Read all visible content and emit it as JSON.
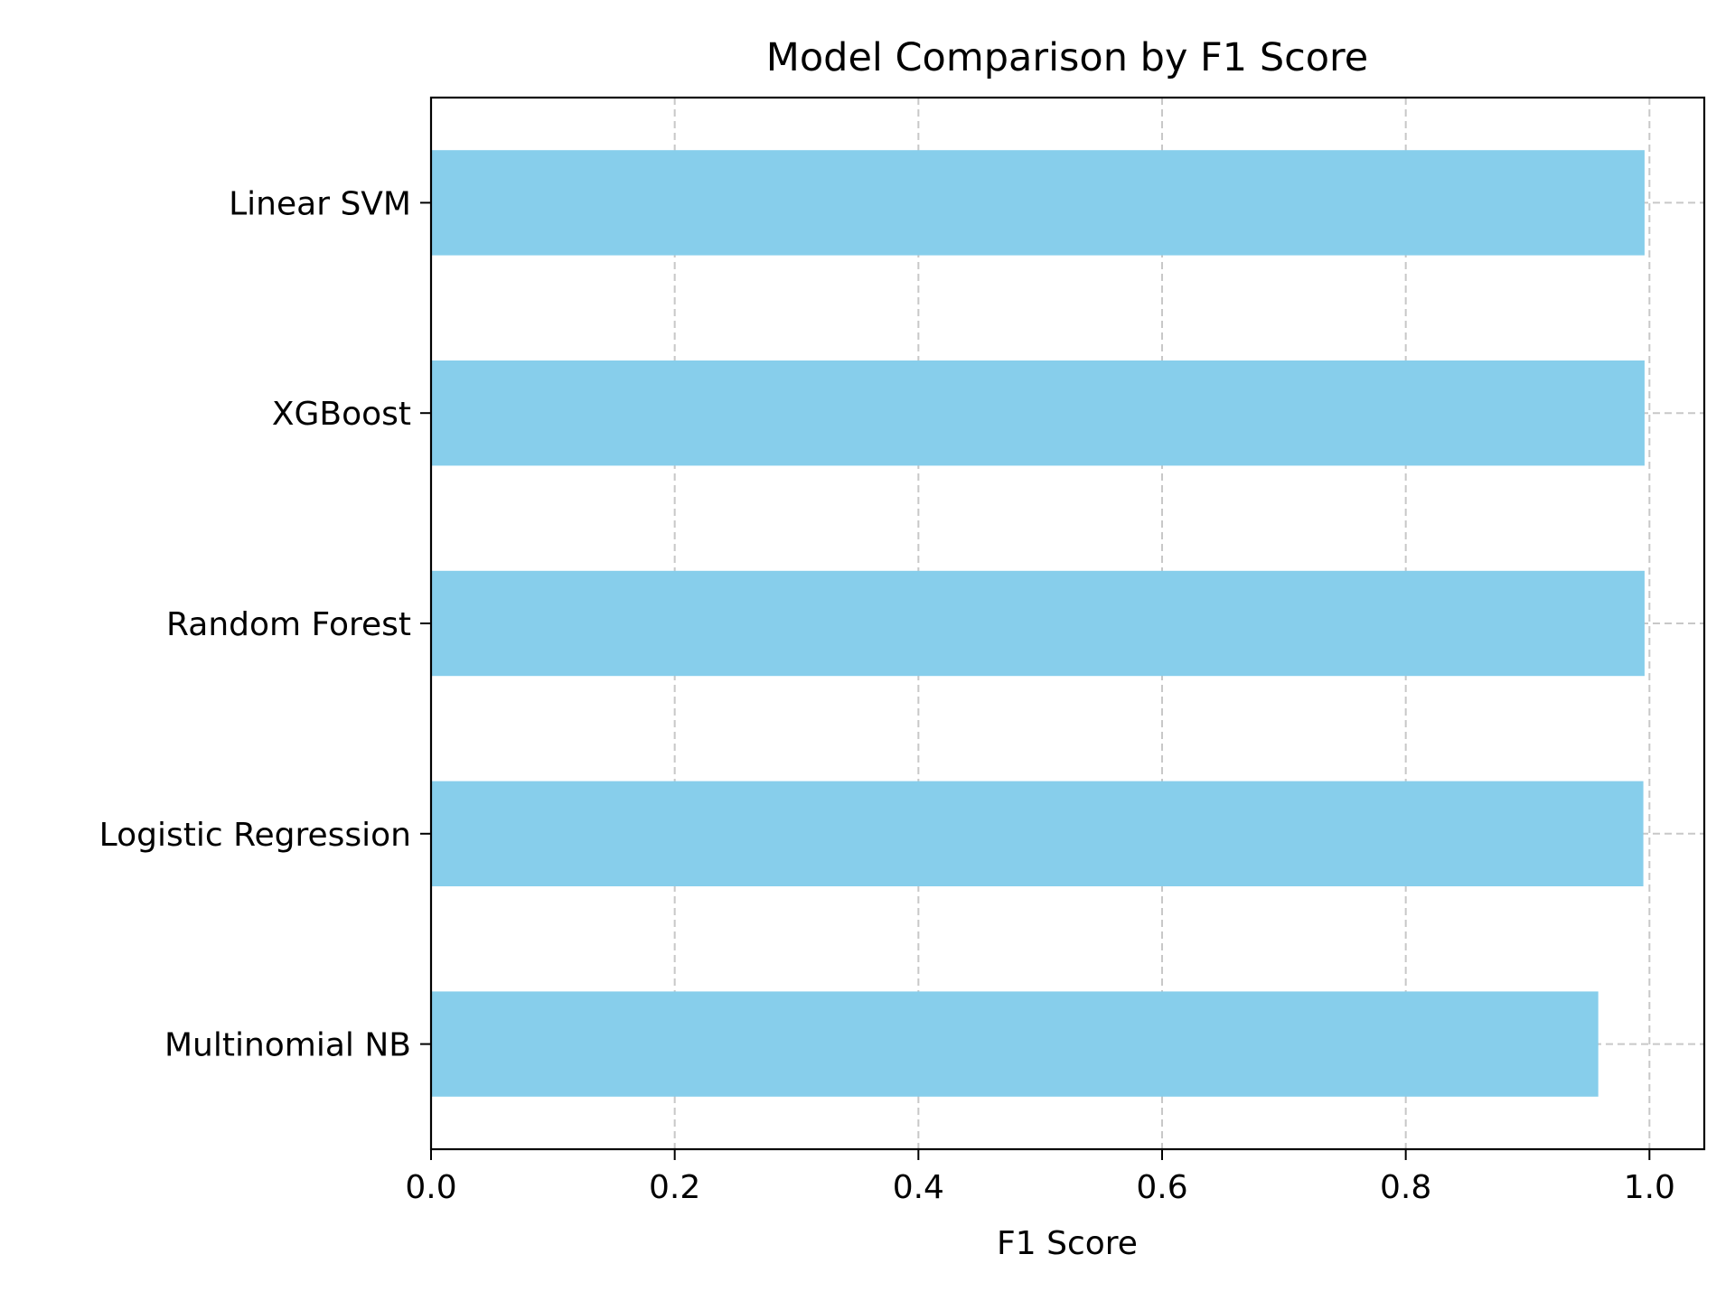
{
  "chart_data": {
    "type": "bar",
    "orientation": "horizontal",
    "title": "Model Comparison by F1 Score",
    "xlabel": "F1 Score",
    "ylabel": "",
    "xlim": [
      0,
      1.045
    ],
    "xticks": [
      0.0,
      0.2,
      0.4,
      0.6,
      0.8,
      1.0
    ],
    "xtick_labels": [
      "0.0",
      "0.2",
      "0.4",
      "0.6",
      "0.8",
      "1.0"
    ],
    "categories": [
      "Linear SVM",
      "XGBoost",
      "Random Forest",
      "Logistic Regression",
      "Multinomial NB"
    ],
    "values": [
      0.996,
      0.996,
      0.996,
      0.995,
      0.958
    ],
    "bar_color": "#87ceeb",
    "grid": true,
    "legend": "none"
  }
}
